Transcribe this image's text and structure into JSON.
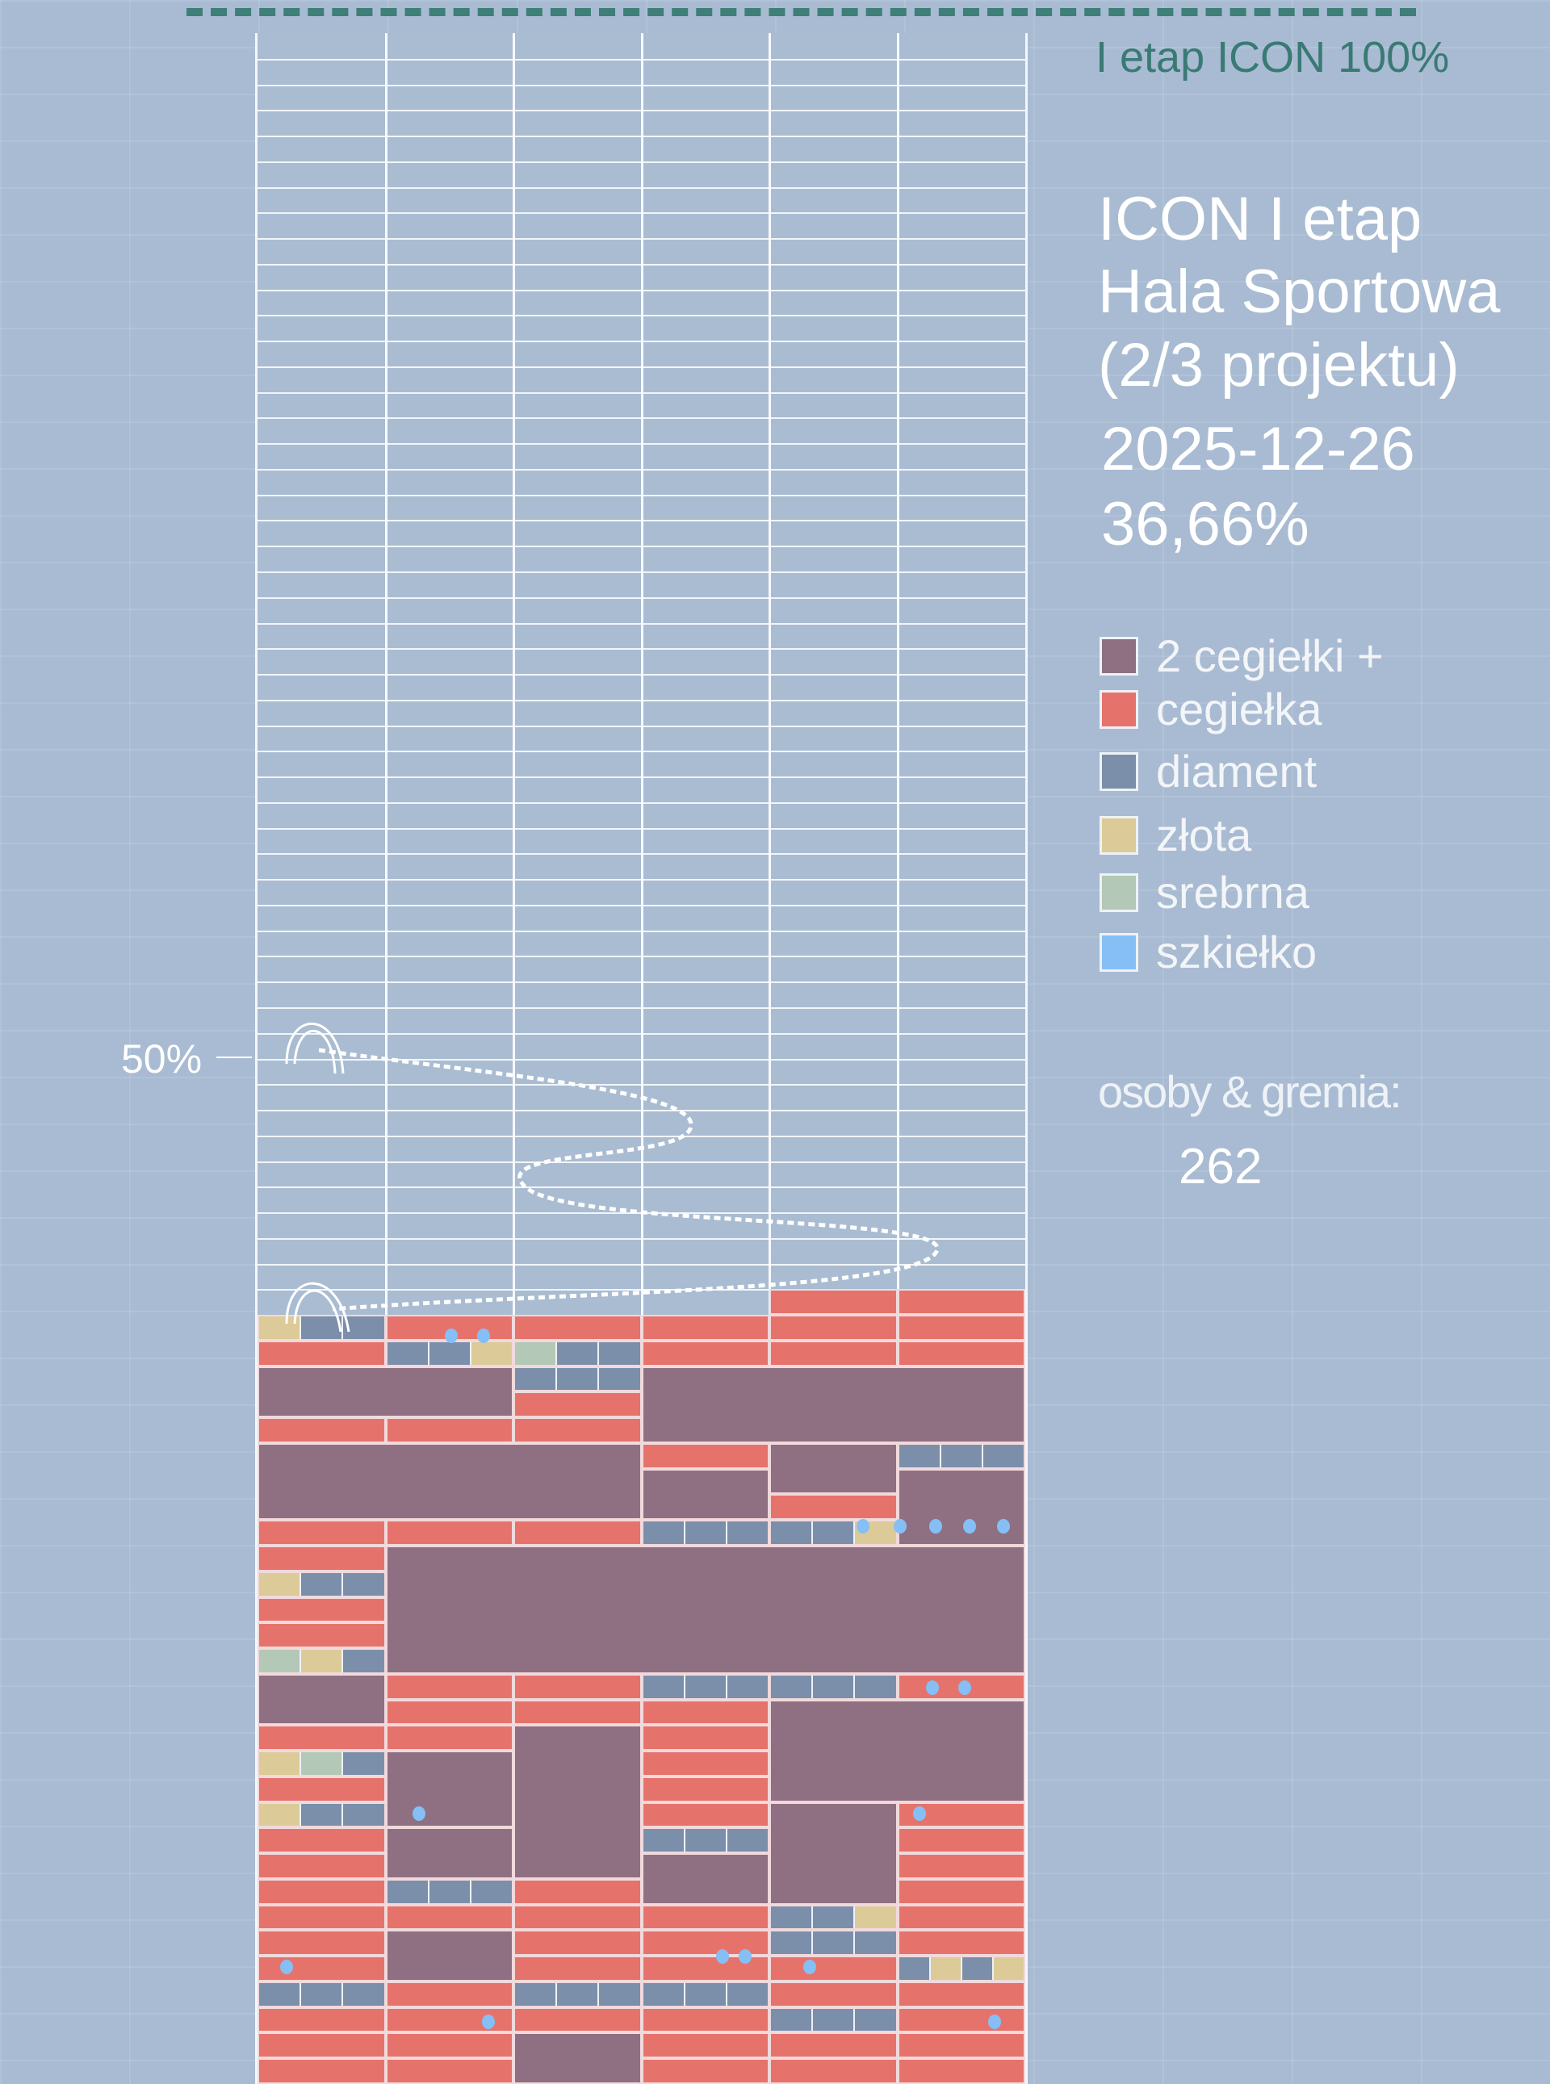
{
  "target": {
    "label": "I etap ICON 100%"
  },
  "title": {
    "line1": "ICON I etap",
    "line2": "Hala Sportowa",
    "line3": "(2/3 projektu)",
    "date": "2025-12-26",
    "progress_text": "36,66%"
  },
  "legend": [
    {
      "label": "2 cegiełki +",
      "color": "#8e7082"
    },
    {
      "label": "cegiełka",
      "color": "#e5736c"
    },
    {
      "label": "diament",
      "color": "#7b8fab"
    },
    {
      "label": "złota",
      "color": "#dccb98"
    },
    {
      "label": "srebrna",
      "color": "#b3c8b6"
    },
    {
      "label": "szkiełko",
      "color": "#85bff5"
    }
  ],
  "supporters": {
    "label": "osoby & gremia:",
    "count": "262"
  },
  "midpoint": {
    "label": "50%"
  },
  "chart_data": {
    "type": "bar",
    "title": "ICON I etap Hala Sportowa (2/3 projektu)",
    "date": "2025-12-26",
    "progress_percent": 36.66,
    "target_percent": 100,
    "marker_percent": 50,
    "categories": [
      "2 cegiełki +",
      "cegiełka",
      "diament",
      "złota",
      "srebrna",
      "szkiełko"
    ],
    "supporters": 262,
    "ylim": [
      0,
      100
    ]
  }
}
